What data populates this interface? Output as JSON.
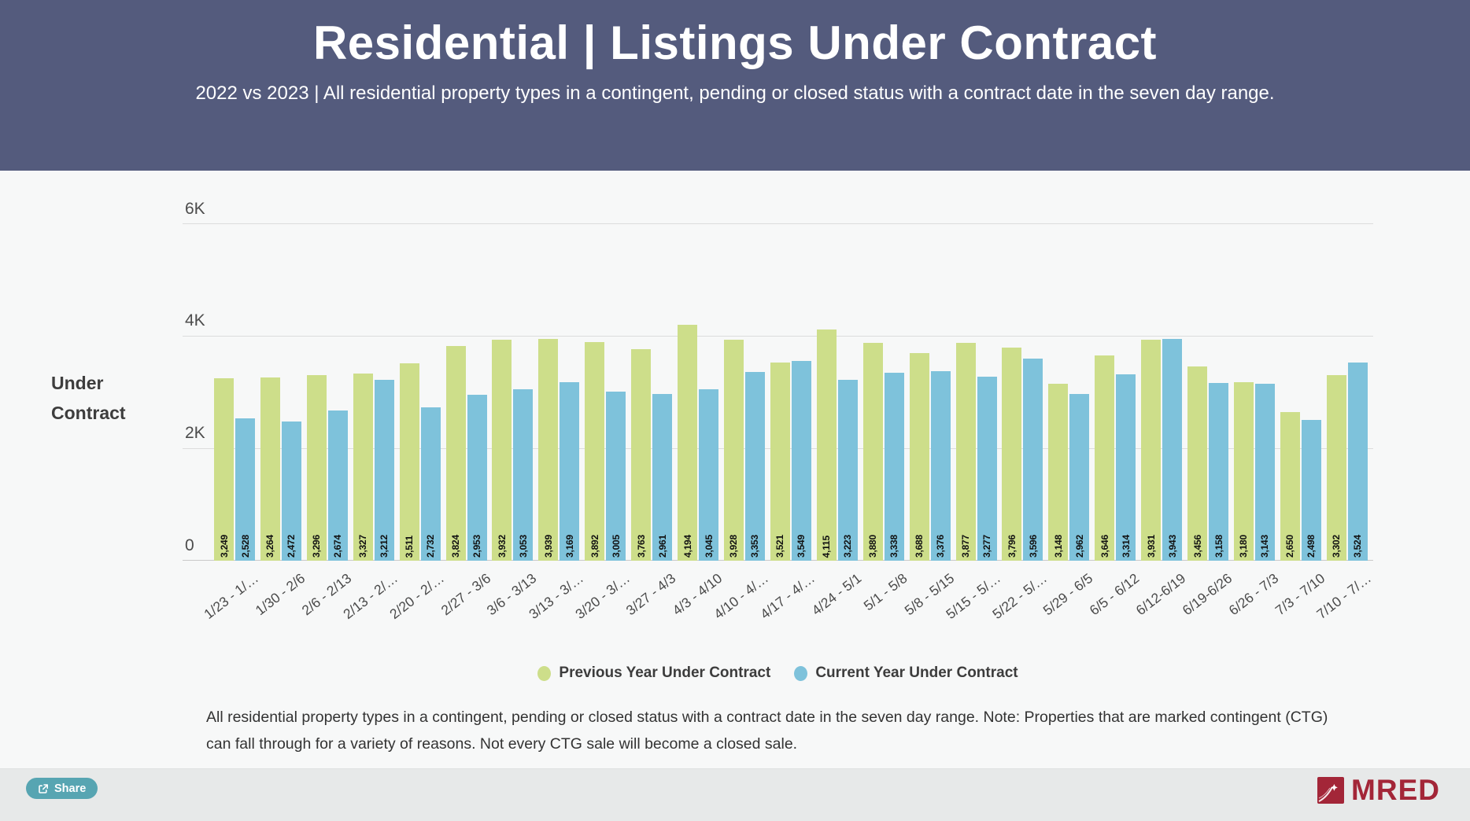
{
  "header": {
    "title": "Residential | Listings Under Contract",
    "subtitle": "2022 vs 2023 | All residential property types in a contingent, pending or closed status with a contract date in the seven day range."
  },
  "axis_title": {
    "line1": "Under",
    "line2": "Contract"
  },
  "chart_data": {
    "type": "bar",
    "title": "Residential | Listings Under Contract",
    "xlabel": "",
    "ylabel": "Under Contract",
    "ylim": [
      0,
      6000
    ],
    "y_ticks": [
      "6K",
      "4K",
      "2K",
      "0"
    ],
    "grid": true,
    "legend_position": "bottom",
    "categories": [
      "1/23 - 1/…",
      "1/30 - 2/6",
      "2/6 - 2/13",
      "2/13 - 2/…",
      "2/20 - 2/…",
      "2/27 - 3/6",
      "3/6 - 3/13",
      "3/13 - 3/…",
      "3/20 - 3/…",
      "3/27 - 4/3",
      "4/3 - 4/10",
      "4/10 - 4/…",
      "4/17 - 4/…",
      "4/24 - 5/1",
      "5/1 - 5/8",
      "5/8 - 5/15",
      "5/15 - 5/…",
      "5/22 - 5/…",
      "5/29 - 6/5",
      "6/5 - 6/12",
      "6/12-6/19",
      "6/19-6/26",
      "6/26 - 7/3",
      "7/3 - 7/10",
      "7/10 - 7/…"
    ],
    "series": [
      {
        "name": "Previous Year Under Contract",
        "color": "#cdde8a",
        "values": [
          3249,
          3264,
          3296,
          3327,
          3511,
          3824,
          3932,
          3939,
          3892,
          3763,
          4194,
          3928,
          3521,
          4115,
          3880,
          3688,
          3877,
          3796,
          3148,
          3646,
          3931,
          3456,
          3180,
          2650,
          3302
        ]
      },
      {
        "name": "Current Year Under Contract",
        "color": "#7ec2db",
        "values": [
          2528,
          2472,
          2674,
          3212,
          2732,
          2953,
          3053,
          3169,
          3005,
          2961,
          3045,
          3353,
          3549,
          3223,
          3338,
          3376,
          3277,
          3596,
          2962,
          3314,
          3943,
          3158,
          3143,
          2498,
          3524
        ]
      }
    ]
  },
  "footnote": "All residential property types in a contingent, pending or closed status with a contract date in the seven day range. Note: Properties that are marked contingent (CTG) can fall through for a variety of reasons. Not every CTG sale will become a closed sale.",
  "footer": {
    "share_label": "Share",
    "brand": "MRED"
  },
  "colors": {
    "header_bg": "#545b7d",
    "prev_year": "#cdde8a",
    "curr_year": "#7ec2db",
    "share_button": "#57a5b2",
    "brand_red": "#a32638"
  }
}
